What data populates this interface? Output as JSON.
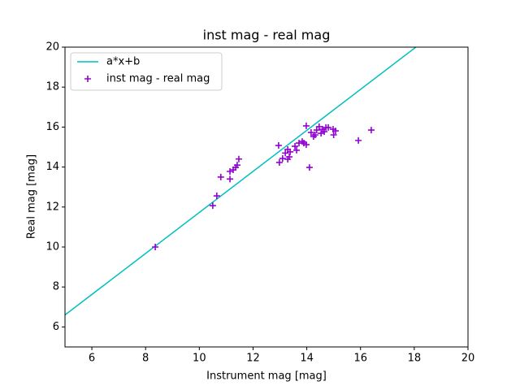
{
  "chart_data": {
    "type": "scatter",
    "title": "inst mag - real mag",
    "x_label": "Instrument mag [mag]",
    "y_label": "Real mag [mag]",
    "xlim": [
      5,
      20
    ],
    "ylim": [
      5,
      20
    ],
    "xticks": [
      6,
      8,
      10,
      12,
      14,
      16,
      18,
      20
    ],
    "yticks": [
      6,
      8,
      10,
      12,
      14,
      16,
      18,
      20
    ],
    "legend": "upper left",
    "series": [
      {
        "name": "a*x+b",
        "type": "line",
        "color": "#00bfbf",
        "x": [
          5,
          18.06
        ],
        "values": [
          6.6,
          20
        ]
      },
      {
        "name": "inst mag - real mag",
        "type": "scatter",
        "color": "#9400d3",
        "x": [
          8.36,
          10.5,
          10.65,
          10.8,
          11.14,
          11.14,
          11.26,
          11.35,
          11.41,
          11.47,
          12.95,
          12.98,
          13.1,
          13.2,
          13.29,
          13.35,
          13.29,
          13.38,
          13.56,
          13.62,
          13.71,
          13.83,
          13.89,
          13.98,
          13.98,
          14.1,
          14.16,
          14.25,
          14.31,
          14.37,
          14.46,
          14.53,
          14.59,
          14.65,
          14.71,
          14.8,
          14.98,
          15.0,
          15.07,
          15.92,
          16.4
        ],
        "values": [
          10.0,
          12.07,
          12.56,
          13.5,
          13.4,
          13.78,
          13.86,
          13.98,
          14.1,
          14.4,
          15.08,
          14.23,
          14.43,
          14.7,
          14.88,
          14.51,
          14.39,
          14.76,
          15.04,
          14.84,
          15.2,
          15.28,
          15.2,
          15.12,
          16.06,
          13.98,
          15.73,
          15.53,
          15.61,
          15.85,
          16.02,
          15.69,
          15.89,
          15.77,
          15.98,
          15.98,
          15.89,
          15.61,
          15.81,
          15.33,
          15.85
        ]
      }
    ]
  }
}
